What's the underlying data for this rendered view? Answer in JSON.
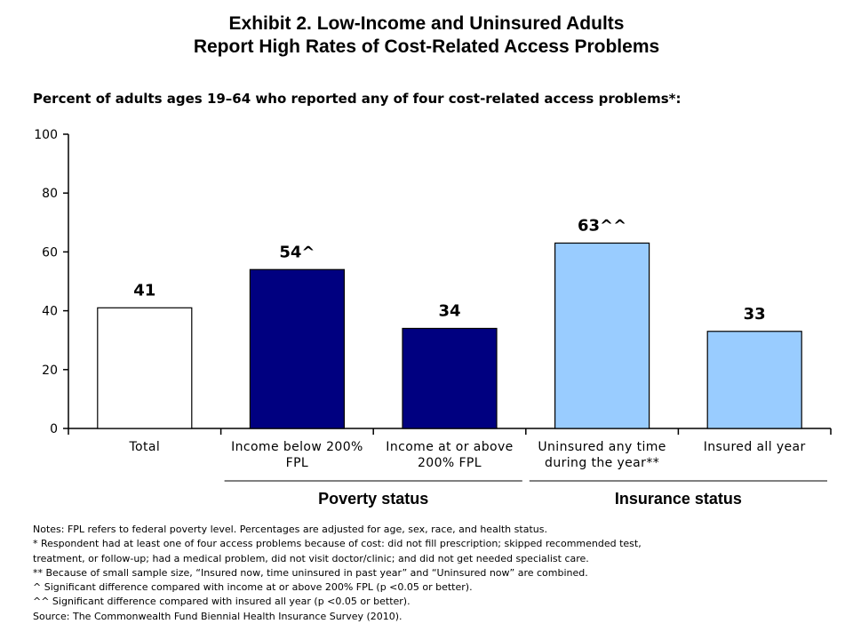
{
  "title": {
    "line1": "Exhibit 2. Low-Income and Uninsured Adults",
    "line2": "Report High Rates of Cost-Related Access Problems"
  },
  "subtitle": "Percent of adults ages 19–64 who reported any of four cost-related access problems*:",
  "chart_data": {
    "type": "bar",
    "title": "",
    "xlabel": "",
    "ylabel": "",
    "ylim": [
      0,
      100
    ],
    "yticks": [
      0,
      20,
      40,
      60,
      80,
      100
    ],
    "grid": false,
    "legend": "none",
    "categories": [
      [
        "Total"
      ],
      [
        "Income below 200%",
        "FPL"
      ],
      [
        "Income at or above",
        "200% FPL"
      ],
      [
        "Uninsured any time",
        "during the year**"
      ],
      [
        "Insured all year"
      ]
    ],
    "values": [
      41,
      54,
      34,
      63,
      33
    ],
    "value_labels": [
      "41",
      "54^",
      "34",
      "63^^",
      "33"
    ],
    "bar_colors": [
      "#ffffff",
      "#000080",
      "#000080",
      "#99ccff",
      "#99ccff"
    ],
    "groups": [
      {
        "label": "Poverty status",
        "categories": [
          1,
          2
        ]
      },
      {
        "label": "Insurance status",
        "categories": [
          3,
          4
        ]
      }
    ]
  },
  "notes": [
    "Notes: FPL refers to federal poverty level. Percentages are adjusted for age, sex, race, and health status.",
    "* Respondent had at least one of four access problems because of cost: did not fill prescription; skipped recommended test,",
    "treatment, or follow-up; had a medical problem, did not visit doctor/clinic; and did not get needed specialist care.",
    "** Because of small sample size, “Insured now, time uninsured in past year” and “Uninsured now” are combined.",
    "^ Significant difference compared with income at or above 200% FPL (p <0.05 or better).",
    "^^ Significant difference compared with insured all year (p <0.05 or better).",
    "Source: The Commonwealth Fund Biennial Health Insurance Survey (2010)."
  ]
}
